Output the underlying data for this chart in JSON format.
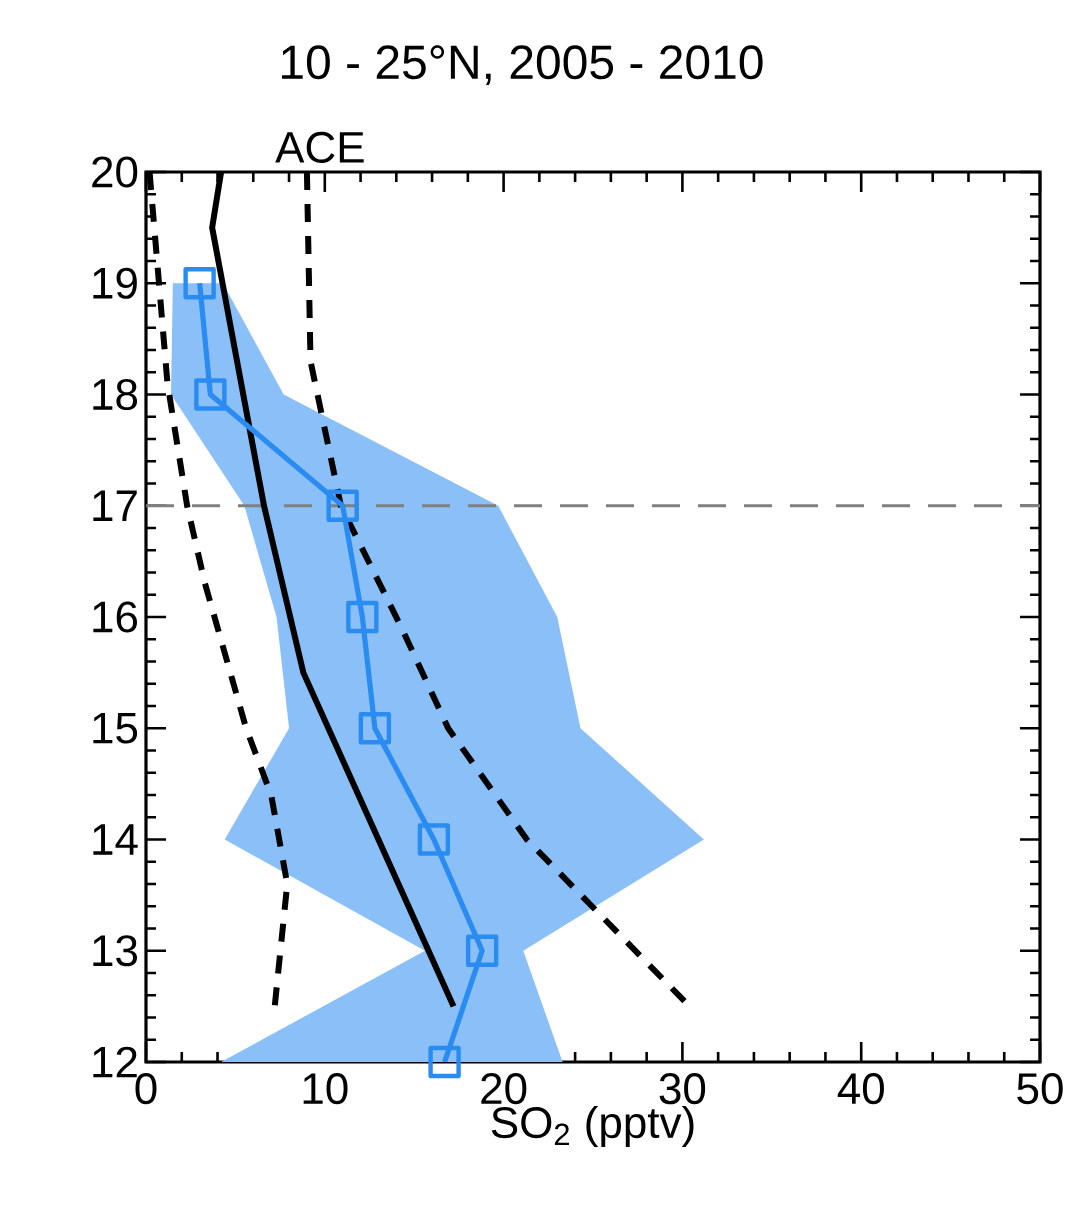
{
  "chart_data": {
    "type": "line",
    "title": "10 - 25°N, 2005 - 2010",
    "xlabel": "SO$_{2}$ (pptv)",
    "annotations": [
      "ACE"
    ],
    "orientation": "horizontal",
    "xlim": [
      0,
      50
    ],
    "xticks": [
      0,
      10,
      20,
      30,
      40,
      50
    ],
    "ylim": [
      12,
      20
    ],
    "yticks": [
      12,
      13,
      14,
      15,
      16,
      17,
      18,
      19,
      20
    ],
    "grid": false,
    "series": [
      {
        "color": "#2a8cf0",
        "marker": "square",
        "line_style": "solid",
        "x": [
          19,
          18,
          17,
          16,
          15,
          14,
          13,
          12
        ],
        "values": [
          3,
          3.6,
          11,
          12.1,
          12.8,
          16.1,
          18.8,
          16.7
        ],
        "lower": [
          1.5,
          1.4,
          5.5,
          7.3,
          8,
          4.4,
          15.6,
          4.2
        ],
        "upper": [
          4.3,
          7.7,
          19.7,
          23,
          24.3,
          31.2,
          21.1,
          23.3
        ]
      },
      {
        "color": "#000000",
        "marker": "none",
        "line_style": "solid",
        "x": [
          20,
          19.5,
          17,
          15.5,
          14,
          13,
          12.5
        ],
        "values": [
          4.2,
          3.7,
          6.6,
          8.8,
          13,
          15.8,
          17.2
        ]
      },
      {
        "color": "#000000",
        "marker": "none",
        "line_style": "dashed",
        "x": [
          20,
          18.1,
          17,
          16.3,
          15,
          14.4,
          13.6,
          12.5
        ],
        "values": [
          0.2,
          1.2,
          2.3,
          3.3,
          5.6,
          7,
          7.9,
          7.2
        ]
      },
      {
        "color": "#000000",
        "marker": "none",
        "line_style": "dashed",
        "x": [
          20,
          18.3,
          17,
          15.9,
          15,
          14,
          12.5
        ],
        "values": [
          9,
          9.2,
          10.9,
          14.3,
          16.9,
          21.3,
          30.4
        ]
      }
    ],
    "ref_lines": [
      {
        "axis": "y",
        "value": 17,
        "color": "#808080",
        "line_style": "dashed"
      }
    ]
  }
}
